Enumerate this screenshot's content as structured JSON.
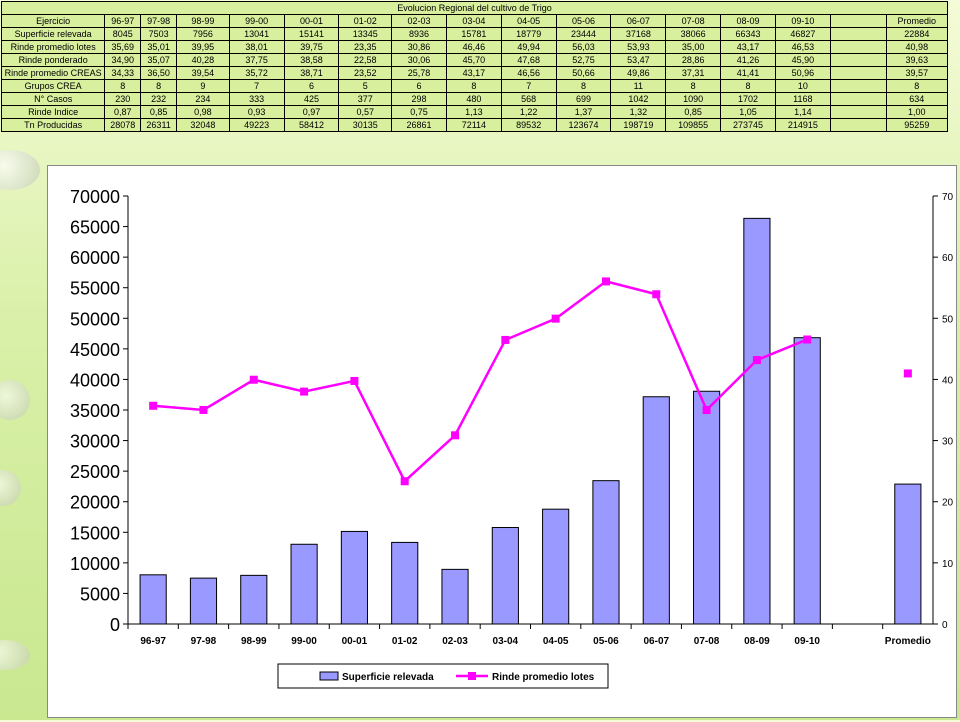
{
  "colors": {
    "bar": "#9999ff",
    "line": "#ff00ff",
    "background": "#d8ef9e"
  },
  "table": {
    "title": "Evolucion Regional del cultivo de Trigo",
    "header": [
      "Ejercicio",
      "96-97",
      "97-98",
      "98-99",
      "99-00",
      "00-01",
      "01-02",
      "02-03",
      "03-04",
      "04-05",
      "05-06",
      "06-07",
      "07-08",
      "08-09",
      "09-10",
      "",
      "Promedio"
    ],
    "rows": [
      [
        "Superficie relevada",
        "8045",
        "7503",
        "7956",
        "13041",
        "15141",
        "13345",
        "8936",
        "15781",
        "18779",
        "23444",
        "37168",
        "38066",
        "66343",
        "46827",
        "",
        "22884"
      ],
      [
        "Rinde promedio lotes",
        "35,69",
        "35,01",
        "39,95",
        "38,01",
        "39,75",
        "23,35",
        "30,86",
        "46,46",
        "49,94",
        "56,03",
        "53,93",
        "35,00",
        "43,17",
        "46,53",
        "",
        "40,98"
      ],
      [
        "Rinde ponderado",
        "34,90",
        "35,07",
        "40,28",
        "37,75",
        "38,58",
        "22,58",
        "30,06",
        "45,70",
        "47,68",
        "52,75",
        "53,47",
        "28,86",
        "41,26",
        "45,90",
        "",
        "39,63"
      ],
      [
        "Rinde promedio CREAS",
        "34,33",
        "36,50",
        "39,54",
        "35,72",
        "38,71",
        "23,52",
        "25,78",
        "43,17",
        "46,56",
        "50,66",
        "49,86",
        "37,31",
        "41,41",
        "50,96",
        "",
        "39,57"
      ],
      [
        "Grupos CREA",
        "8",
        "8",
        "9",
        "7",
        "6",
        "5",
        "6",
        "8",
        "7",
        "8",
        "11",
        "8",
        "8",
        "10",
        "",
        "8"
      ],
      [
        "N° Casos",
        "230",
        "232",
        "234",
        "333",
        "425",
        "377",
        "298",
        "480",
        "568",
        "699",
        "1042",
        "1090",
        "1702",
        "1168",
        "",
        "634"
      ],
      [
        "Rinde Indice",
        "0,87",
        "0,85",
        "0,98",
        "0,93",
        "0,97",
        "0,57",
        "0,75",
        "1,13",
        "1,22",
        "1,37",
        "1,32",
        "0,85",
        "1,05",
        "1,14",
        "",
        "1,00"
      ],
      [
        "Tn Producidas",
        "28078",
        "26311",
        "32048",
        "49223",
        "58412",
        "30135",
        "26861",
        "72114",
        "89532",
        "123674",
        "198719",
        "109855",
        "273745",
        "214915",
        "",
        "95259"
      ]
    ]
  },
  "chart_data": {
    "type": "bar",
    "categories": [
      "96-97",
      "97-98",
      "98-99",
      "99-00",
      "00-01",
      "01-02",
      "02-03",
      "03-04",
      "04-05",
      "05-06",
      "06-07",
      "07-08",
      "08-09",
      "09-10",
      "",
      "Promedio"
    ],
    "series": [
      {
        "name": "Superficie relevada",
        "type": "bar",
        "axis": "left",
        "values": [
          8045,
          7503,
          7956,
          13041,
          15141,
          13345,
          8936,
          15781,
          18779,
          23444,
          37168,
          38066,
          66343,
          46827,
          null,
          22884
        ]
      },
      {
        "name": "Rinde promedio lotes",
        "type": "line",
        "axis": "right",
        "values": [
          35.69,
          35.01,
          39.95,
          38.01,
          39.75,
          23.35,
          30.86,
          46.46,
          49.94,
          56.03,
          53.93,
          35.0,
          43.17,
          46.53,
          null,
          40.98
        ]
      }
    ],
    "y_left": {
      "min": 0,
      "max": 70000,
      "step": 5000
    },
    "y_right": {
      "min": 0,
      "max": 70,
      "step": 10
    },
    "grid": false,
    "legend": "bottom-center"
  }
}
